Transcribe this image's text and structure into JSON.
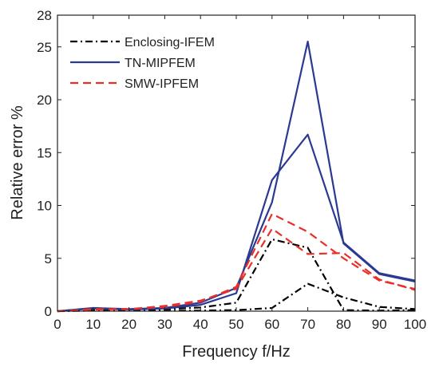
{
  "chart_data": {
    "type": "line",
    "xlabel": "Frequency  f/Hz",
    "ylabel": "Relative error %",
    "xlim": [
      0,
      100
    ],
    "ylim": [
      0,
      28
    ],
    "xticks": [
      "0",
      "10",
      "20",
      "30",
      "40",
      "50",
      "60",
      "70",
      "80",
      "90",
      "100"
    ],
    "yticks": [
      "0",
      "5",
      "10",
      "15",
      "20",
      "25",
      "28"
    ],
    "legend_position": "top-left",
    "grid": false,
    "series": [
      {
        "name": "Enclosing-IFEM",
        "color": "#000000",
        "dash": "dashdot",
        "lines": [
          {
            "x": [
              0,
              10,
              20,
              30,
              40,
              50,
              60,
              70,
              80,
              90,
              100
            ],
            "y": [
              0,
              0.1,
              0.15,
              0.2,
              0.35,
              0.8,
              6.8,
              6.0,
              0.1,
              0.05,
              0.1
            ]
          },
          {
            "x": [
              0,
              10,
              20,
              30,
              40,
              50,
              60,
              70,
              80,
              90,
              100
            ],
            "y": [
              0,
              0.05,
              0.05,
              0.05,
              0.05,
              0.1,
              0.3,
              2.6,
              1.3,
              0.4,
              0.2
            ]
          }
        ]
      },
      {
        "name": "TN-MIPFEM",
        "color": "#2b3990",
        "dash": "solid",
        "lines": [
          {
            "x": [
              0,
              10,
              20,
              30,
              40,
              50,
              60,
              70,
              80,
              90,
              100
            ],
            "y": [
              0,
              0.3,
              0.2,
              0.3,
              0.8,
              2.2,
              10.3,
              25.5,
              6.4,
              3.5,
              2.8
            ]
          },
          {
            "x": [
              0,
              10,
              20,
              30,
              40,
              50,
              60,
              70,
              80,
              90,
              100
            ],
            "y": [
              0,
              0.25,
              0.15,
              0.25,
              0.6,
              1.7,
              12.4,
              16.7,
              6.5,
              3.6,
              2.9
            ]
          }
        ]
      },
      {
        "name": "SMW-IPFEM",
        "color": "#e8302a",
        "dash": "dashed",
        "lines": [
          {
            "x": [
              0,
              10,
              20,
              30,
              40,
              50,
              60,
              70,
              80,
              90,
              100
            ],
            "y": [
              0,
              0.2,
              0.2,
              0.4,
              0.9,
              2.3,
              9.2,
              7.5,
              5.0,
              2.9,
              2.1
            ]
          },
          {
            "x": [
              0,
              10,
              20,
              30,
              40,
              50,
              60,
              70,
              80,
              90,
              100
            ],
            "y": [
              0,
              0.15,
              0.2,
              0.5,
              1.0,
              2.1,
              7.8,
              5.4,
              5.5,
              3.0,
              2.0
            ]
          }
        ]
      }
    ]
  }
}
